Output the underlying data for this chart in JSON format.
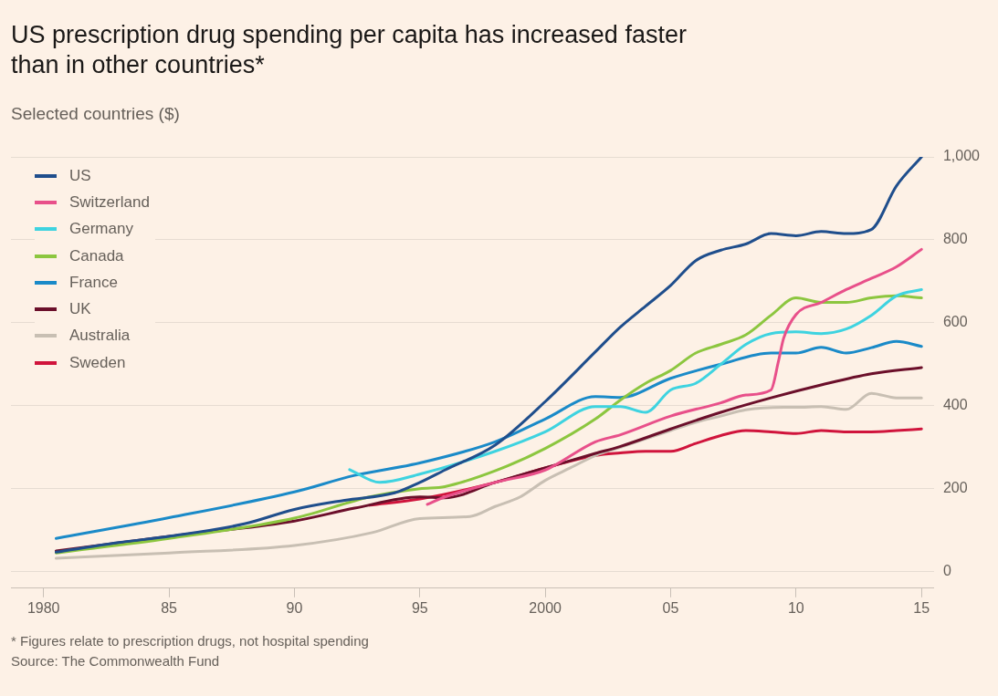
{
  "chart_data": {
    "type": "line",
    "title": "US prescription drug spending per capita has increased faster than in other countries*",
    "subtitle": "Selected countries ($)",
    "annotations": [
      "* Figures relate to prescription drugs, not hospital spending",
      "Source: The Commonwealth Fund"
    ],
    "xlim": [
      1978.7,
      2015.5
    ],
    "xticks": [
      1980,
      {
        "value": 1985,
        "label": "85"
      },
      {
        "value": 1990,
        "label": "90"
      },
      {
        "value": 1995,
        "label": "95"
      },
      2000,
      {
        "value": 2005,
        "label": "05"
      },
      {
        "value": 2010,
        "label": "10"
      },
      {
        "value": 2015,
        "label": "15"
      }
    ],
    "ylim": [
      -40,
      1000
    ],
    "yticks": [
      0,
      200,
      400,
      600,
      800,
      {
        "value": 1000,
        "label": "1,000"
      }
    ],
    "grid": "y",
    "legend": "top left",
    "marker": "none",
    "line_style": "solid",
    "series": [
      {
        "name": "US",
        "color": "#1f4e8c",
        "x": [
          1980.5,
          1983,
          1985,
          1988,
          1990,
          1992,
          1994,
          1995,
          1996,
          1998,
          2000,
          2002,
          2003,
          2004,
          2005,
          2006,
          2007,
          2008,
          2009,
          2010,
          2011,
          2012,
          2013,
          2014,
          2015
        ],
        "values": [
          47,
          70,
          85,
          115,
          150,
          172,
          190,
          215,
          245,
          305,
          410,
          530,
          590,
          640,
          690,
          750,
          775,
          790,
          815,
          810,
          820,
          815,
          825,
          930,
          1000
        ]
      },
      {
        "name": "Switzerland",
        "color": "#e8508a",
        "x": [
          1995.3,
          1996,
          1998,
          2000,
          2002,
          2003,
          2005,
          2007,
          2008,
          2009,
          2009.3,
          2009.5,
          2010,
          2011,
          2012,
          2013,
          2014,
          2015
        ],
        "values": [
          162,
          180,
          215,
          245,
          313,
          330,
          375,
          407,
          426,
          438,
          508,
          562,
          620,
          649,
          680,
          707,
          735,
          777
        ]
      },
      {
        "name": "Germany",
        "color": "#3ed3e0",
        "x": [
          1992.2,
          1993.4,
          1995,
          1998,
          2000,
          2002,
          2003,
          2004,
          2005,
          2006,
          2007,
          2008,
          2009,
          2010,
          2011,
          2012,
          2013,
          2014,
          2015
        ],
        "values": [
          246,
          215,
          235,
          290,
          337,
          398,
          398,
          384,
          438,
          454,
          500,
          548,
          574,
          578,
          574,
          585,
          618,
          665,
          680
        ]
      },
      {
        "name": "Canada",
        "color": "#8cc63f",
        "x": [
          1980.5,
          1985,
          1990,
          1993,
          1995,
          1996,
          1998,
          2000,
          2002,
          2003,
          2004,
          2005,
          2006,
          2007,
          2008,
          2009,
          2010,
          2011,
          2012,
          2013,
          2014,
          2015
        ],
        "values": [
          45,
          80,
          129,
          180,
          200,
          205,
          243,
          297,
          368,
          414,
          454,
          485,
          527,
          548,
          571,
          618,
          660,
          649,
          649,
          660,
          665,
          660
        ]
      },
      {
        "name": "France",
        "color": "#1a8ac8",
        "x": [
          1980.5,
          1985,
          1990,
          1992.4,
          1995,
          1998,
          2000,
          2002,
          2003,
          2005,
          2007,
          2009,
          2010,
          2011,
          2012,
          2013,
          2014,
          2015
        ],
        "values": [
          80,
          130,
          192,
          232,
          262,
          313,
          368,
          422,
          420,
          466,
          500,
          527,
          527,
          541,
          527,
          540,
          555,
          543
        ]
      },
      {
        "name": "UK",
        "color": "#6b0f2a",
        "x": [
          1980.5,
          1985,
          1990,
          1992.4,
          1995,
          1996,
          1998,
          2000,
          2002,
          2003,
          2005,
          2007,
          2009,
          2011,
          2013,
          2015
        ],
        "values": [
          50,
          85,
          122,
          153,
          180,
          178,
          215,
          250,
          285,
          302,
          344,
          384,
          419,
          450,
          477,
          492
        ]
      },
      {
        "name": "Australia",
        "color": "#c8bfb3",
        "x": [
          1980.5,
          1985,
          1990,
          1993.1,
          1995,
          1997,
          1998,
          1999,
          2000,
          2001,
          2002,
          2003,
          2004,
          2005,
          2006,
          2007,
          2008,
          2009.5,
          2010,
          2011,
          2012,
          2013,
          2014,
          2015
        ],
        "values": [
          32,
          45,
          63,
          94,
          128,
          133,
          157,
          180,
          220,
          250,
          280,
          300,
          320,
          340,
          360,
          375,
          390,
          396,
          396,
          398,
          391,
          430,
          419,
          419
        ]
      },
      {
        "name": "Sweden",
        "color": "#d0143c",
        "x": [
          1993,
          1995,
          1998,
          2000,
          2002,
          2003,
          2004,
          2005,
          2006,
          2007,
          2008,
          2009,
          2010,
          2011,
          2012,
          2013,
          2014,
          2015
        ],
        "values": [
          160,
          175,
          215,
          250,
          280,
          286,
          290,
          290,
          309,
          328,
          340,
          337,
          333,
          340,
          337,
          337,
          340,
          344
        ]
      }
    ]
  }
}
